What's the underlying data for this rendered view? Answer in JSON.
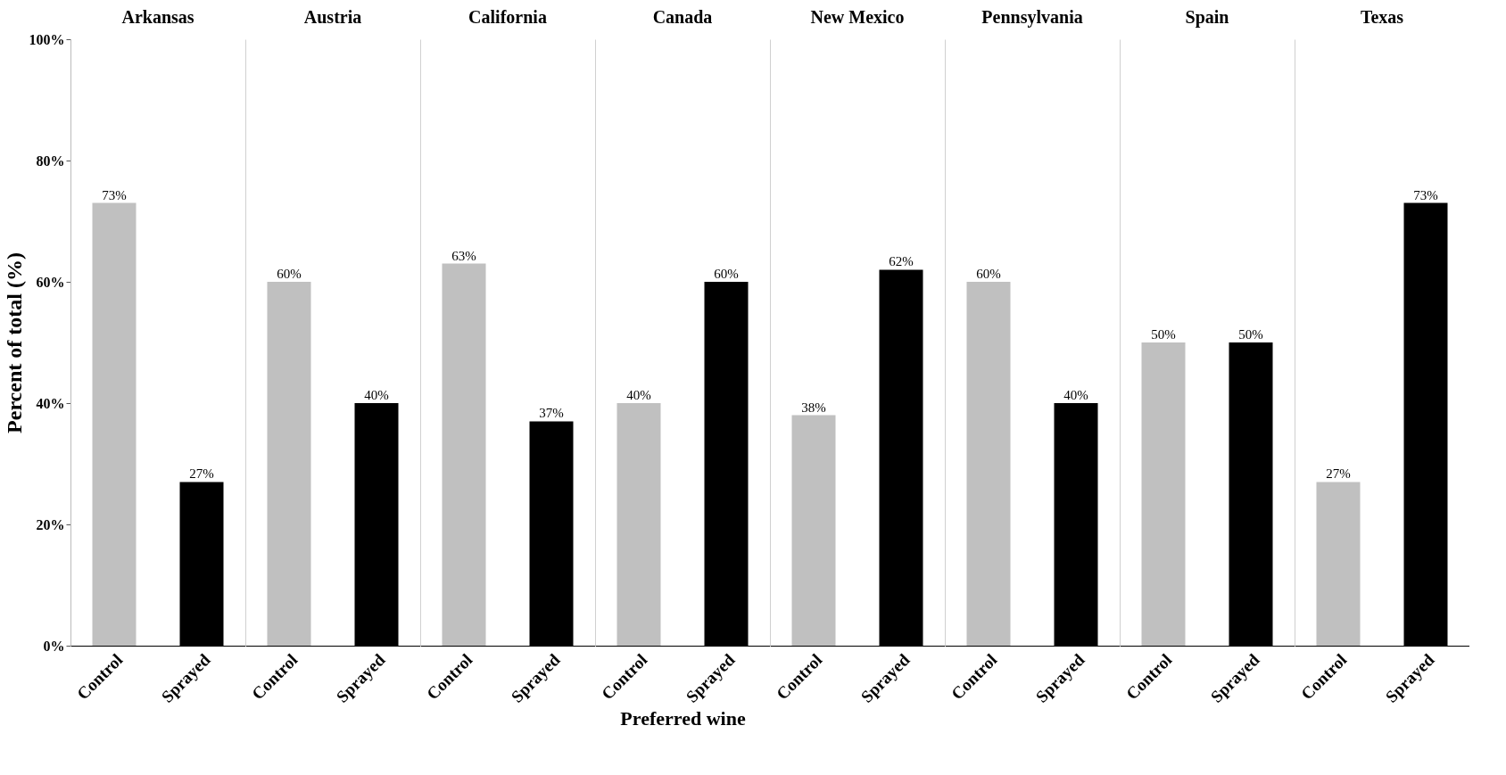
{
  "chart_data": [
    {
      "type": "bar",
      "title": "Arkansas",
      "ylabel": "Percent of total (%)",
      "categories": [
        "Control",
        "Sprayed"
      ],
      "values": [
        73,
        27
      ],
      "value_labels": [
        "73%",
        "27%"
      ],
      "colors": [
        "#c0c0c0",
        "#000000"
      ],
      "ylim": [
        0,
        100
      ],
      "yticks": [
        {
          "value": 0,
          "label": "0%"
        },
        {
          "value": 20,
          "label": "20%"
        },
        {
          "value": 40,
          "label": "40%"
        },
        {
          "value": 60,
          "label": "60%"
        },
        {
          "value": 80,
          "label": "80%"
        },
        {
          "value": 100,
          "label": "100%"
        }
      ]
    },
    {
      "type": "bar",
      "title": "Austria",
      "categories": [
        "Control",
        "Sprayed"
      ],
      "values": [
        60,
        40
      ],
      "value_labels": [
        "60%",
        "40%"
      ],
      "colors": [
        "#c0c0c0",
        "#000000"
      ],
      "ylim": [
        0,
        100
      ],
      "tick_labels": "x"
    },
    {
      "type": "bar",
      "title": "California",
      "categories": [
        "Control",
        "Sprayed"
      ],
      "values": [
        63,
        37
      ],
      "value_labels": [
        "63%",
        "37%"
      ],
      "colors": [
        "#c0c0c0",
        "#000000"
      ],
      "ylim": [
        0,
        100
      ],
      "tick_labels": "x"
    },
    {
      "type": "bar",
      "title": "Canada",
      "xlabel": "Preferred wine",
      "categories": [
        "Control",
        "Sprayed"
      ],
      "values": [
        40,
        60
      ],
      "value_labels": [
        "40%",
        "60%"
      ],
      "colors": [
        "#c0c0c0",
        "#000000"
      ],
      "ylim": [
        0,
        100
      ],
      "tick_labels": "x"
    },
    {
      "type": "bar",
      "title": "New Mexico",
      "categories": [
        "Control",
        "Sprayed"
      ],
      "values": [
        38,
        62
      ],
      "value_labels": [
        "38%",
        "62%"
      ],
      "colors": [
        "#c0c0c0",
        "#000000"
      ],
      "ylim": [
        0,
        100
      ],
      "tick_labels": "x"
    },
    {
      "type": "bar",
      "title": "Pennsylvania",
      "categories": [
        "Control",
        "Sprayed"
      ],
      "values": [
        60,
        40
      ],
      "value_labels": [
        "60%",
        "40%"
      ],
      "colors": [
        "#c0c0c0",
        "#000000"
      ],
      "ylim": [
        0,
        100
      ],
      "tick_labels": "x"
    },
    {
      "type": "bar",
      "title": "Spain",
      "categories": [
        "Control",
        "Sprayed"
      ],
      "values": [
        50,
        50
      ],
      "value_labels": [
        "50%",
        "50%"
      ],
      "colors": [
        "#c0c0c0",
        "#000000"
      ],
      "ylim": [
        0,
        100
      ],
      "tick_labels": "x"
    },
    {
      "type": "bar",
      "title": "Texas",
      "categories": [
        "Control",
        "Sprayed"
      ],
      "values": [
        27,
        73
      ],
      "value_labels": [
        "27%",
        "73%"
      ],
      "colors": [
        "#c0c0c0",
        "#000000"
      ],
      "ylim": [
        0,
        100
      ],
      "tick_labels": "x"
    }
  ]
}
